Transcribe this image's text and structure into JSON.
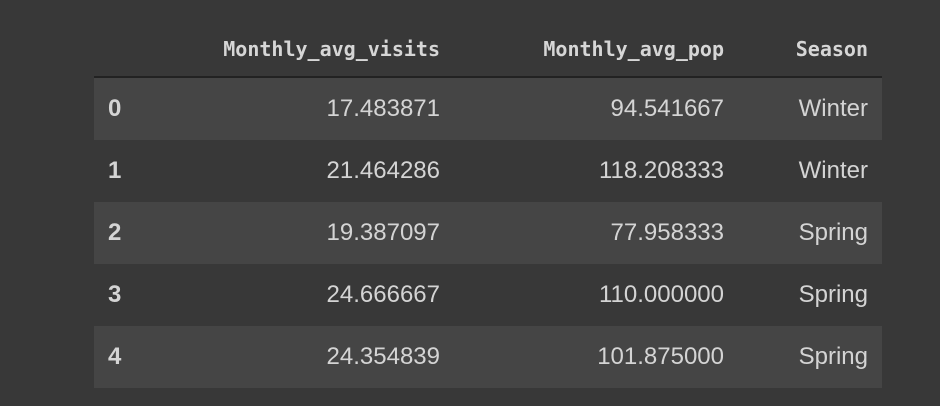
{
  "table": {
    "columns": [
      "",
      "Monthly_avg_visits",
      "Monthly_avg_pop",
      "Season"
    ],
    "rows": [
      {
        "index": "0",
        "Monthly_avg_visits": "17.483871",
        "Monthly_avg_pop": "94.541667",
        "Season": "Winter"
      },
      {
        "index": "1",
        "Monthly_avg_visits": "21.464286",
        "Monthly_avg_pop": "118.208333",
        "Season": "Winter"
      },
      {
        "index": "2",
        "Monthly_avg_visits": "19.387097",
        "Monthly_avg_pop": "77.958333",
        "Season": "Spring"
      },
      {
        "index": "3",
        "Monthly_avg_visits": "24.666667",
        "Monthly_avg_pop": "110.000000",
        "Season": "Spring"
      },
      {
        "index": "4",
        "Monthly_avg_visits": "24.354839",
        "Monthly_avg_pop": "101.875000",
        "Season": "Spring"
      }
    ]
  },
  "colors": {
    "background": "#383838",
    "row_stripe": "#454545",
    "text": "#d4d4d4",
    "header_rule": "#222222"
  }
}
